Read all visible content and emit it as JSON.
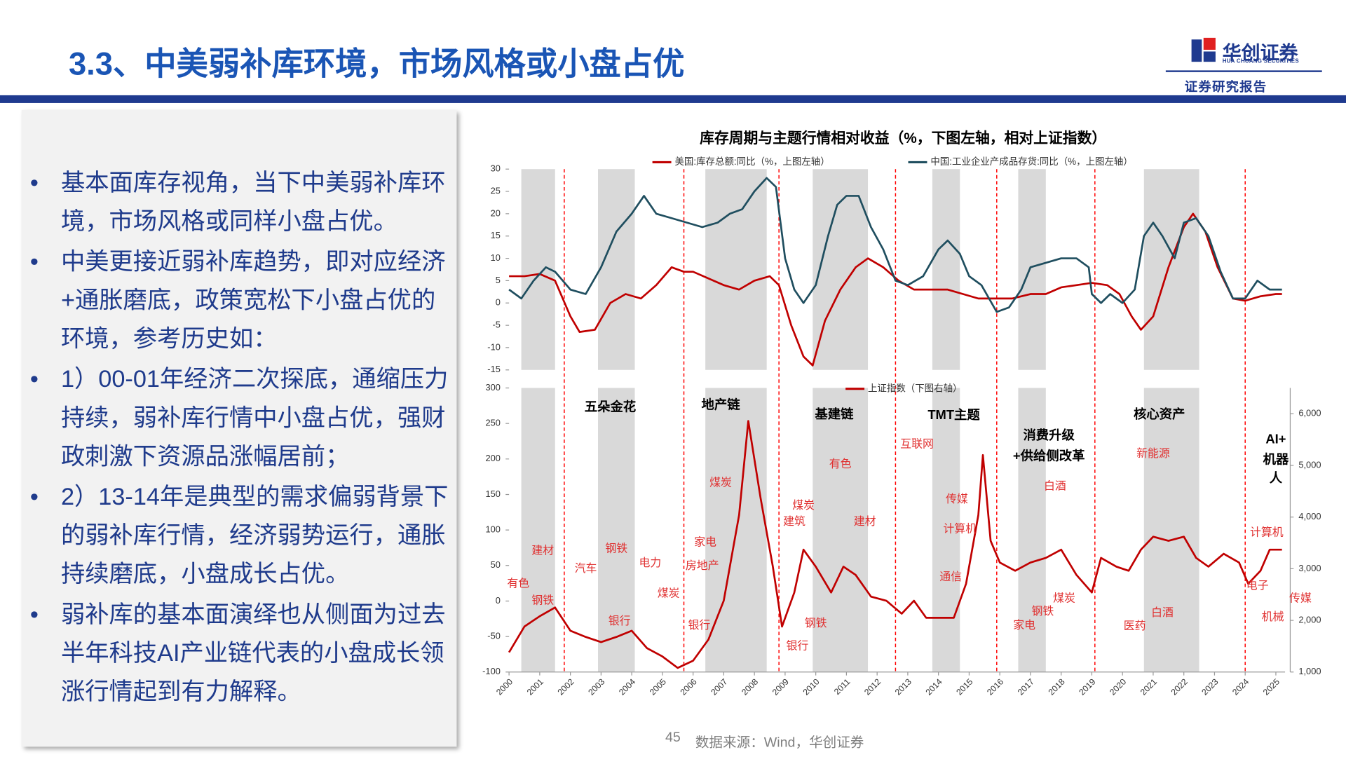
{
  "header": {
    "title": "3.3、中美弱补库环境，市场风格或小盘占优",
    "logo": "华创证券",
    "logo_sub": "HUA CHUANG SECURITIES",
    "tag": "证券研究报告"
  },
  "bullets": [
    "基本面库存视角，当下中美弱补库环境，市场风格或同样小盘占优。",
    "中美更接近弱补库趋势，即对应经济+通胀磨底，政策宽松下小盘占优的环境，参考历史如：",
    "1）00-01年经济二次探底，通缩压力持续，弱补库行情中小盘占优，强财政刺激下资源品涨幅居前；",
    "2）13-14年是典型的需求偏弱背景下的弱补库行情，经济弱势运行，通胀持续磨底，小盘成长占优。",
    "弱补库的基本面演绎也从侧面为过去半年科技AI产业链代表的小盘成长领涨行情起到有力解释。"
  ],
  "footer": {
    "page": "45",
    "source": "数据来源：Wind，华创证券"
  },
  "chart_data": [
    {
      "type": "line",
      "title": "库存周期与主题行情相对收益（%，下图左轴，相对上证指数）",
      "xlim": [
        2000,
        2025.3
      ],
      "ylim": [
        -15,
        30
      ],
      "yticks": [
        -15,
        -10,
        -5,
        0,
        5,
        10,
        15,
        20,
        25,
        30
      ],
      "shaded_periods": [
        [
          2000.4,
          2001.5
        ],
        [
          2002.9,
          2004.1
        ],
        [
          2006.4,
          2008.4
        ],
        [
          2009.9,
          2011.7
        ],
        [
          2013.8,
          2014.7
        ],
        [
          2016.6,
          2017.5
        ],
        [
          2020.7,
          2022.5
        ]
      ],
      "shade_color": "#d9d9d9",
      "cycle_lines": [
        2001.8,
        2005.7,
        2008.8,
        2012.6,
        2015.9,
        2019.1,
        2024.0
      ],
      "cycle_color": "#ff0000",
      "series": [
        {
          "name": "美国:库存总额:同比（%，上图左轴）",
          "color": "#c00000",
          "x": [
            2000,
            2000.5,
            2001,
            2001.5,
            2002,
            2002.3,
            2002.8,
            2003.3,
            2003.8,
            2004.3,
            2004.8,
            2005.3,
            2005.7,
            2006,
            2006.5,
            2007,
            2007.5,
            2008,
            2008.5,
            2008.8,
            2009.2,
            2009.6,
            2009.9,
            2010.3,
            2010.8,
            2011.3,
            2011.7,
            2012.2,
            2012.7,
            2013.2,
            2013.8,
            2014.3,
            2014.8,
            2015.3,
            2015.9,
            2016.4,
            2017,
            2017.5,
            2018,
            2018.5,
            2019,
            2019.5,
            2019.9,
            2020.3,
            2020.6,
            2021,
            2021.5,
            2022,
            2022.3,
            2022.7,
            2023.1,
            2023.6,
            2024,
            2024.5,
            2025,
            2025.2
          ],
          "values": [
            6,
            6,
            6.5,
            5,
            -3,
            -6.5,
            -6,
            0,
            2,
            1,
            4,
            8,
            7,
            7,
            5.5,
            4,
            3,
            5,
            6,
            4,
            -5,
            -12,
            -14,
            -4,
            3,
            8,
            10,
            8,
            5,
            3,
            3,
            3,
            2,
            1,
            1,
            1,
            2,
            2,
            3.5,
            4,
            4.5,
            4,
            2,
            -3,
            -6,
            -3,
            8,
            17,
            20,
            16,
            8,
            1,
            0.5,
            1.5,
            2,
            2
          ]
        },
        {
          "name": "中国:工业企业产成品存货:同比（%，上图左轴）",
          "color": "#1f4e5f",
          "x": [
            2000,
            2000.4,
            2000.8,
            2001.2,
            2001.5,
            2002,
            2002.5,
            2003,
            2003.5,
            2004,
            2004.4,
            2004.8,
            2005.3,
            2005.8,
            2006.3,
            2006.8,
            2007.2,
            2007.6,
            2008,
            2008.4,
            2008.7,
            2009,
            2009.3,
            2009.6,
            2010,
            2010.4,
            2010.7,
            2011,
            2011.4,
            2011.8,
            2012.2,
            2012.6,
            2013,
            2013.5,
            2014,
            2014.3,
            2014.7,
            2015,
            2015.4,
            2015.9,
            2016.3,
            2016.7,
            2017,
            2017.5,
            2018,
            2018.5,
            2018.9,
            2019,
            2019.3,
            2019.6,
            2020,
            2020.4,
            2020.7,
            2021,
            2021.3,
            2021.7,
            2022,
            2022.4,
            2022.8,
            2023.2,
            2023.6,
            2024,
            2024.4,
            2024.8,
            2025.2
          ],
          "values": [
            3,
            1,
            5,
            8,
            7,
            3,
            2,
            8,
            16,
            20,
            24,
            20,
            19,
            18,
            17,
            18,
            20,
            21,
            25,
            28,
            26,
            10,
            3,
            0,
            4,
            15,
            22,
            24,
            24,
            17,
            12,
            5,
            4,
            6,
            12,
            14,
            11,
            6,
            4,
            -2,
            -1,
            3,
            8,
            9,
            10,
            10,
            8,
            2,
            0,
            2,
            0,
            3,
            15,
            18,
            15,
            10,
            18,
            19,
            15,
            7,
            1,
            1,
            5,
            3,
            3
          ]
        }
      ]
    },
    {
      "type": "line",
      "xlim": [
        2000,
        2025.3
      ],
      "xticks": [
        2000,
        2001,
        2002,
        2003,
        2004,
        2005,
        2006,
        2007,
        2008,
        2009,
        2010,
        2011,
        2012,
        2013,
        2014,
        2015,
        2016,
        2017,
        2018,
        2019,
        2020,
        2021,
        2022,
        2023,
        2024,
        2025
      ],
      "ylim": [
        -100,
        300
      ],
      "yticks": [
        -100,
        -50,
        0,
        50,
        100,
        150,
        200,
        250,
        300
      ],
      "y2lim": [
        1000,
        6500
      ],
      "y2ticks": [
        {
          "value": 1000,
          "label": "1,000"
        },
        {
          "value": 2000,
          "label": "2,000"
        },
        {
          "value": 3000,
          "label": "3,000"
        },
        {
          "value": 4000,
          "label": "4,000"
        },
        {
          "value": 5000,
          "label": "5,000"
        },
        {
          "value": 6000,
          "label": "6,000"
        }
      ],
      "series": [
        {
          "name": "上证指数（下图右轴）",
          "color": "#c00000",
          "axis": "y2",
          "x": [
            2000,
            2000.5,
            2001,
            2001.5,
            2002,
            2002.5,
            2003,
            2003.5,
            2004,
            2004.5,
            2005,
            2005.5,
            2006,
            2006.5,
            2007,
            2007.5,
            2007.8,
            2008.2,
            2008.6,
            2008.9,
            2009.3,
            2009.6,
            2010,
            2010.5,
            2010.9,
            2011.3,
            2011.8,
            2012.3,
            2012.8,
            2013.2,
            2013.6,
            2014,
            2014.5,
            2014.9,
            2015.3,
            2015.45,
            2015.7,
            2016,
            2016.5,
            2017,
            2017.5,
            2018,
            2018.5,
            2019,
            2019.3,
            2019.8,
            2020.2,
            2020.6,
            2021,
            2021.5,
            2022,
            2022.4,
            2022.8,
            2023.3,
            2023.8,
            2024.1,
            2024.5,
            2024.8,
            2025.2
          ],
          "values": [
            1380,
            1880,
            2080,
            2250,
            1800,
            1680,
            1580,
            1680,
            1800,
            1460,
            1300,
            1080,
            1220,
            1630,
            2380,
            4040,
            5860,
            4370,
            3040,
            1880,
            2540,
            3370,
            3040,
            2540,
            3040,
            2880,
            2460,
            2380,
            2130,
            2380,
            2050,
            2050,
            2050,
            2710,
            4040,
            5200,
            3540,
            3120,
            2960,
            3120,
            3210,
            3370,
            2880,
            2540,
            3210,
            3040,
            2960,
            3370,
            3620,
            3540,
            3620,
            3210,
            3040,
            3290,
            3120,
            2710,
            2960,
            3370,
            3370
          ]
        }
      ],
      "theme_labels": [
        {
          "text": "五朵金花",
          "x": 2003.3,
          "y": 272
        },
        {
          "text": "地产链",
          "x": 2006.9,
          "y": 275
        },
        {
          "text": "基建链",
          "x": 2010.6,
          "y": 262
        },
        {
          "text": "TMT主题",
          "x": 2014.5,
          "y": 261
        },
        {
          "text": "消费升级",
          "x": 2017.6,
          "y": 232
        },
        {
          "text": "+供给侧改革",
          "x": 2017.6,
          "y": 203
        },
        {
          "text": "核心资产",
          "x": 2021.2,
          "y": 262
        },
        {
          "text": "AI+",
          "x": 2025,
          "y": 227
        },
        {
          "text": "机器",
          "x": 2025,
          "y": 198
        },
        {
          "text": "人",
          "x": 2025,
          "y": 172
        }
      ],
      "sector_labels": [
        {
          "text": "有色",
          "x": 2000.3,
          "y": 24
        },
        {
          "text": "钢铁",
          "x": 2001.1,
          "y": 0
        },
        {
          "text": "建材",
          "x": 2001.1,
          "y": 70
        },
        {
          "text": "汽车",
          "x": 2002.5,
          "y": 45
        },
        {
          "text": "钢铁",
          "x": 2003.5,
          "y": 73
        },
        {
          "text": "电力",
          "x": 2004.6,
          "y": 53
        },
        {
          "text": "煤炭",
          "x": 2005.2,
          "y": 10
        },
        {
          "text": "银行",
          "x": 2003.6,
          "y": -29
        },
        {
          "text": "家电",
          "x": 2006.4,
          "y": 82
        },
        {
          "text": "房地产",
          "x": 2006.3,
          "y": 49
        },
        {
          "text": "银行",
          "x": 2006.2,
          "y": -35
        },
        {
          "text": "煤炭",
          "x": 2006.9,
          "y": 166
        },
        {
          "text": "煤炭",
          "x": 2009.6,
          "y": 134
        },
        {
          "text": "建筑",
          "x": 2009.3,
          "y": 111
        },
        {
          "text": "有色",
          "x": 2010.8,
          "y": 192
        },
        {
          "text": "建材",
          "x": 2011.6,
          "y": 111
        },
        {
          "text": "钢铁",
          "x": 2010,
          "y": -32
        },
        {
          "text": "银行",
          "x": 2009.4,
          "y": -64
        },
        {
          "text": "互联网",
          "x": 2013.3,
          "y": 220
        },
        {
          "text": "传媒",
          "x": 2014.6,
          "y": 143
        },
        {
          "text": "计算机",
          "x": 2014.7,
          "y": 101
        },
        {
          "text": "通信",
          "x": 2014.4,
          "y": 33
        },
        {
          "text": "白酒",
          "x": 2017.8,
          "y": 161
        },
        {
          "text": "煤炭",
          "x": 2018.1,
          "y": 3
        },
        {
          "text": "钢铁",
          "x": 2017.4,
          "y": -15
        },
        {
          "text": "家电",
          "x": 2016.8,
          "y": -35
        },
        {
          "text": "新能源",
          "x": 2021,
          "y": 207
        },
        {
          "text": "白酒",
          "x": 2021.3,
          "y": -17
        },
        {
          "text": "医药",
          "x": 2020.4,
          "y": -36
        },
        {
          "text": "计算机",
          "x": 2024.7,
          "y": 96
        },
        {
          "text": "电子",
          "x": 2024.4,
          "y": 21
        },
        {
          "text": "机械",
          "x": 2024.9,
          "y": -23
        },
        {
          "text": "传媒",
          "x": 2025.8,
          "y": 3
        }
      ],
      "sector_color": "#e03030"
    }
  ]
}
